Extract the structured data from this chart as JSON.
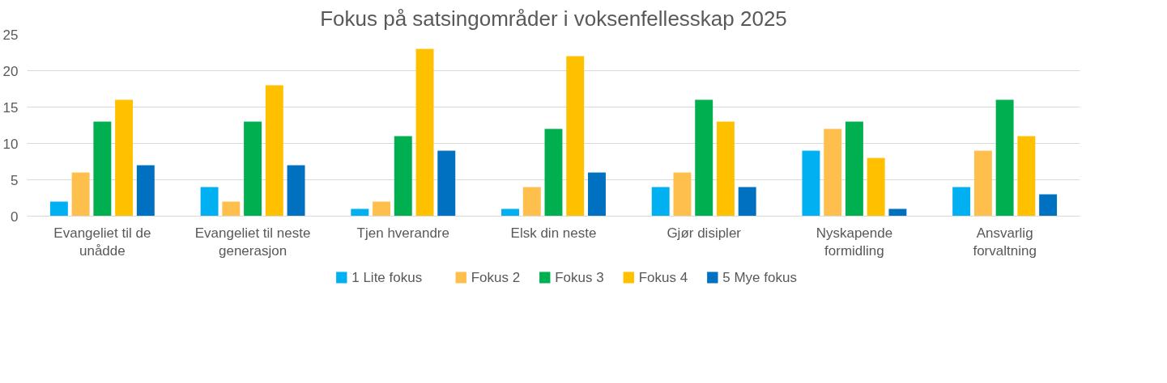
{
  "chart_data": {
    "type": "bar",
    "title": "Fokus på satsingområder i voksenfellesskap 2025",
    "categories": [
      "Evangeliet til de unådde",
      "Evangeliet til neste generasjon",
      "Tjen hverandre",
      "Elsk din neste",
      "Gjør disipler",
      "Nyskapende formidling",
      "Ansvarlig forvaltning"
    ],
    "series": [
      {
        "name": "1 Lite fokus",
        "color": "#00b0f0",
        "values": [
          2,
          4,
          1,
          1,
          4,
          9,
          4
        ]
      },
      {
        "name": "Fokus 2",
        "color": "#ffbf4d",
        "values": [
          6,
          2,
          2,
          4,
          6,
          12,
          9
        ]
      },
      {
        "name": "Fokus 3",
        "color": "#00b050",
        "values": [
          13,
          13,
          11,
          12,
          16,
          13,
          16
        ]
      },
      {
        "name": "Fokus 4",
        "color": "#ffc000",
        "values": [
          16,
          18,
          23,
          22,
          13,
          8,
          11
        ]
      },
      {
        "name": "5 Mye fokus",
        "color": "#0070c0",
        "values": [
          7,
          7,
          9,
          6,
          4,
          1,
          3
        ]
      }
    ],
    "ylim": [
      0,
      25
    ],
    "yticks": [
      0,
      5,
      10,
      15,
      20,
      25
    ],
    "grid": "y",
    "legend": "bottom"
  }
}
